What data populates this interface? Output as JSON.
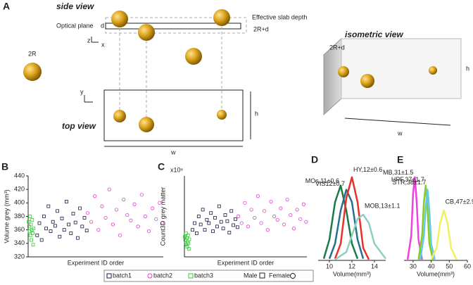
{
  "diagram": {
    "panel": "A",
    "side_view": "side view",
    "effective_slab_depth": "Effective slab depth",
    "optical_plane": "Optical plane",
    "d": "d",
    "slab": "2R+d",
    "radius": "2R",
    "top_view": "top view",
    "top_h": "h",
    "top_w": "w",
    "isometric_view": "isometric view",
    "iso_slab": "2R+d",
    "iso_h": "h",
    "iso_w": "w",
    "axis_z": "z",
    "axis_x": "x",
    "axis_y": "y"
  },
  "legend": {
    "male": "Male",
    "female": "Female"
  },
  "chart_data": [
    {
      "type": "scatter",
      "panel": "B",
      "x_label": "Experiment ID order",
      "y_label": "Volume grey (mm³)",
      "xlim": [
        0,
        300
      ],
      "ylim": [
        320,
        440
      ],
      "yticks": [
        320,
        340,
        360,
        380,
        400,
        420,
        440
      ],
      "series": [
        {
          "name": "batch1",
          "color": "#1a1a40",
          "marker": "square",
          "x": [
            20,
            25,
            30,
            35,
            40,
            45,
            50,
            55,
            60,
            65,
            70,
            75,
            80,
            85,
            90,
            95,
            100,
            105,
            110,
            115,
            120,
            125,
            130
          ],
          "values": [
            352,
            370,
            345,
            380,
            362,
            395,
            358,
            372,
            366,
            388,
            350,
            377,
            360,
            402,
            368,
            355,
            384,
            371,
            348,
            392,
            365,
            378,
            359
          ]
        },
        {
          "name": "batch2",
          "color": "#e040c8",
          "marker": "circle",
          "x": [
            132,
            140,
            148,
            156,
            164,
            172,
            180,
            188,
            196,
            204,
            212,
            220,
            228,
            236,
            244,
            252,
            260,
            268,
            276,
            284,
            292,
            298
          ],
          "values": [
            385,
            372,
            410,
            360,
            395,
            378,
            420,
            368,
            390,
            352,
            405,
            382,
            374,
            398,
            365,
            412,
            380,
            358,
            392,
            376,
            400,
            370
          ]
        },
        {
          "name": "batch3",
          "color": "#33cc33",
          "marker": "square",
          "x": [
            1,
            2,
            3,
            4,
            5,
            6,
            7,
            8,
            9,
            10,
            11,
            12
          ],
          "values": [
            372,
            365,
            358,
            380,
            352,
            368,
            345,
            360,
            375,
            355,
            338,
            362
          ]
        }
      ]
    },
    {
      "type": "scatter",
      "panel": "C",
      "x_label": "Experiment ID order",
      "y_label": "Count3D grey matter",
      "y_multiplier": "x10⁶",
      "xlim": [
        0,
        300
      ],
      "ylim": [
        1.8,
        3.0
      ],
      "series": [
        {
          "name": "batch1",
          "color": "#1a1a40",
          "marker": "square",
          "x": [
            20,
            25,
            30,
            35,
            40,
            45,
            50,
            55,
            60,
            65,
            70,
            75,
            80,
            85,
            90,
            95,
            100,
            105,
            110,
            115,
            120,
            125,
            130
          ],
          "values": [
            2.2,
            2.3,
            2.15,
            2.4,
            2.28,
            2.5,
            2.2,
            2.35,
            2.3,
            2.45,
            2.18,
            2.38,
            2.25,
            2.55,
            2.32,
            2.22,
            2.42,
            2.33,
            2.16,
            2.48,
            2.27,
            2.36,
            2.24
          ]
        },
        {
          "name": "batch2",
          "color": "#e040c8",
          "marker": "circle",
          "x": [
            132,
            140,
            148,
            156,
            164,
            172,
            180,
            188,
            196,
            204,
            212,
            220,
            228,
            236,
            244,
            252,
            260,
            268,
            276,
            284,
            292,
            298
          ],
          "values": [
            2.4,
            2.3,
            2.6,
            2.25,
            2.5,
            2.38,
            2.7,
            2.3,
            2.48,
            2.2,
            2.62,
            2.4,
            2.35,
            2.52,
            2.28,
            2.65,
            2.42,
            2.22,
            2.5,
            2.36,
            2.58,
            2.32
          ]
        },
        {
          "name": "batch3",
          "color": "#33cc33",
          "marker": "square",
          "x": [
            1,
            2,
            3,
            4,
            5,
            6,
            7,
            8,
            9,
            10,
            11,
            12
          ],
          "values": [
            2.1,
            2.05,
            2.0,
            2.15,
            1.98,
            2.08,
            1.95,
            2.02,
            2.12,
            2.0,
            1.92,
            2.06
          ]
        }
      ]
    },
    {
      "type": "line",
      "panel": "D",
      "x_label": "Volume(mm³)",
      "xlim": [
        9,
        15
      ],
      "xticks": [
        10,
        12,
        14
      ],
      "ylim": [
        0,
        1.1
      ],
      "series": [
        {
          "name": "MOs,11±0.6",
          "color": "#1a7a4a",
          "x": [
            9.5,
            10,
            10.5,
            11,
            11.5,
            12,
            12.5
          ],
          "values": [
            0.02,
            0.25,
            0.7,
            0.9,
            0.6,
            0.2,
            0.02
          ]
        },
        {
          "name": "VIS12±0.7",
          "color": "#2a6f8f",
          "x": [
            10,
            10.5,
            11,
            11.5,
            12,
            12.5,
            13
          ],
          "values": [
            0.02,
            0.2,
            0.6,
            0.85,
            0.7,
            0.25,
            0.02
          ]
        },
        {
          "name": "HY,12±0.6",
          "color": "#e8312a",
          "x": [
            10.5,
            11,
            11.5,
            12,
            12.5,
            13,
            13.5
          ],
          "values": [
            0.02,
            0.2,
            0.75,
            1.0,
            0.7,
            0.15,
            0.01
          ]
        },
        {
          "name": "MOB,13±1.1",
          "color": "#8fcfbf",
          "x": [
            10.5,
            11.5,
            12,
            12.5,
            13,
            13.5,
            14,
            15
          ],
          "values": [
            0.01,
            0.1,
            0.3,
            0.5,
            0.55,
            0.45,
            0.2,
            0.02
          ]
        }
      ]
    },
    {
      "type": "line",
      "panel": "E",
      "x_label": "Volume(mm³)",
      "xlim": [
        25,
        60
      ],
      "xticks": [
        30,
        40,
        50,
        60
      ],
      "ylim": [
        0,
        1.1
      ],
      "series": [
        {
          "name": "MB,31±1.5",
          "color": "#f040e0",
          "x": [
            27,
            29,
            30,
            31,
            32,
            33,
            35
          ],
          "values": [
            0.01,
            0.3,
            0.8,
            1.0,
            0.7,
            0.25,
            0.01
          ]
        },
        {
          "name": "HPF,37±1.7",
          "color": "#88cc22",
          "x": [
            33,
            35,
            36,
            37,
            38,
            39,
            41
          ],
          "values": [
            0.01,
            0.3,
            0.7,
            0.9,
            0.6,
            0.2,
            0.01
          ]
        },
        {
          "name": "STR,38±1.7",
          "color": "#66c8e8",
          "x": [
            34,
            36,
            37,
            38,
            39,
            40,
            42
          ],
          "values": [
            0.01,
            0.3,
            0.65,
            0.85,
            0.6,
            0.2,
            0.01
          ]
        },
        {
          "name": "CB,47±2.9",
          "color": "#f0f060",
          "x": [
            40,
            43,
            45,
            47,
            49,
            51,
            54
          ],
          "values": [
            0.01,
            0.15,
            0.45,
            0.6,
            0.45,
            0.15,
            0.01
          ]
        }
      ]
    }
  ]
}
